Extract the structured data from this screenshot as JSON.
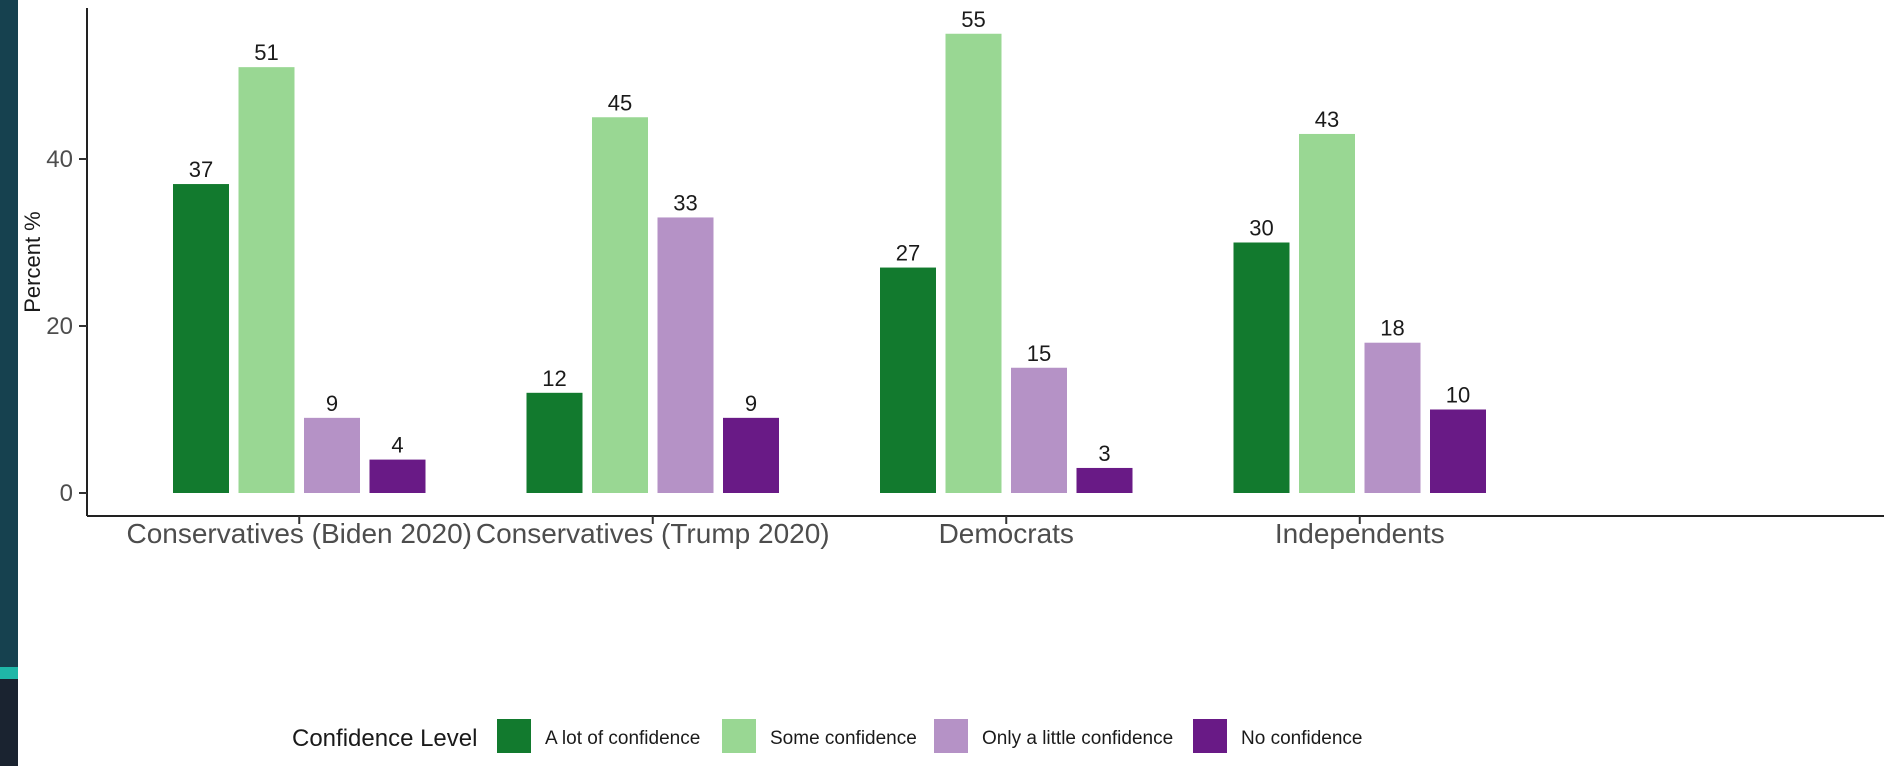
{
  "chart_data": {
    "type": "bar",
    "title": "",
    "xlabel": "",
    "ylabel": "Percent %",
    "ylim": [
      0,
      56
    ],
    "yticks": [
      0,
      20,
      40
    ],
    "grid": false,
    "legend_position": "bottom",
    "legend_title": "Confidence Level",
    "categories": [
      "Conservatives (Biden 2020)",
      "Conservatives (Trump 2020)",
      "Democrats",
      "Independents"
    ],
    "series": [
      {
        "name": "A lot of confidence",
        "color": "#127a2e",
        "values": [
          37,
          12,
          27,
          30
        ]
      },
      {
        "name": "Some confidence",
        "color": "#99d793",
        "values": [
          51,
          45,
          55,
          43
        ]
      },
      {
        "name": "Only a little confidence",
        "color": "#b592c6",
        "values": [
          9,
          33,
          15,
          18
        ]
      },
      {
        "name": "No confidence",
        "color": "#691a86",
        "values": [
          4,
          9,
          3,
          10
        ]
      }
    ]
  }
}
